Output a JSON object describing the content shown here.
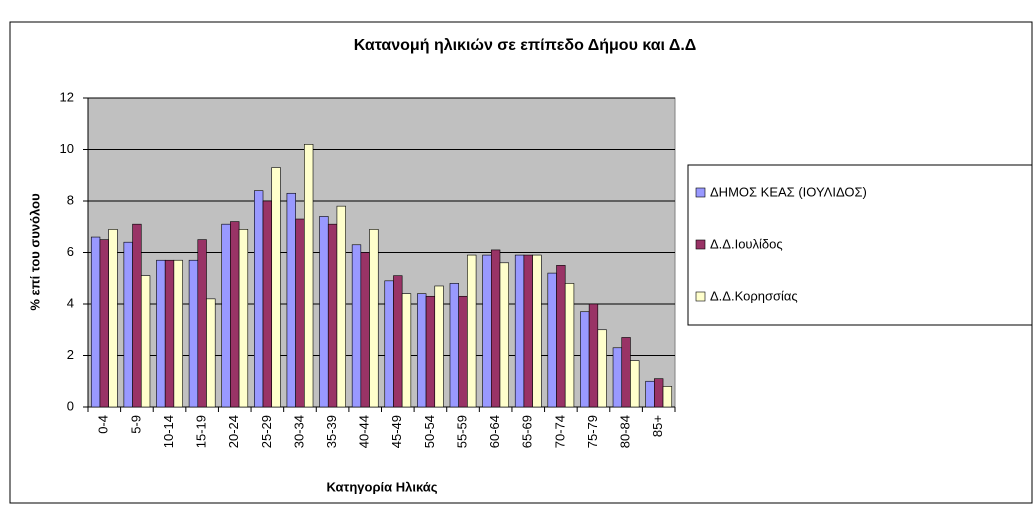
{
  "chart_data": {
    "type": "bar",
    "title": "Κατανομή ηλικιών σε επίπεδο Δήμου και Δ.Δ",
    "x_label": "Κατηγορία Ηλικάς",
    "y_label": "% επί του συνόλου",
    "categories": [
      "0-4",
      "5-9",
      "10-14",
      "15-19",
      "20-24",
      "25-29",
      "30-34",
      "35-39",
      "40-44",
      "45-49",
      "50-54",
      "55-59",
      "60-64",
      "65-69",
      "70-74",
      "75-79",
      "80-84",
      "85+"
    ],
    "series": [
      {
        "name": "ΔΗΜΟΣ ΚΕΑΣ (ΙΟΥΛΙΔΟΣ)",
        "color": "#9999ff",
        "values": [
          6.6,
          6.4,
          5.7,
          5.7,
          7.1,
          8.4,
          8.3,
          7.4,
          6.3,
          4.9,
          4.4,
          4.8,
          5.9,
          5.9,
          5.2,
          3.7,
          2.3,
          1.0
        ]
      },
      {
        "name": "Δ.Δ.Ιουλίδος",
        "color": "#993366",
        "values": [
          6.5,
          7.1,
          5.7,
          6.5,
          7.2,
          8.0,
          7.3,
          7.1,
          6.0,
          5.1,
          4.3,
          4.3,
          6.1,
          5.9,
          5.5,
          4.0,
          2.7,
          1.1
        ]
      },
      {
        "name": "Δ.Δ.Κορησσίας",
        "color": "#ffffcc",
        "values": [
          6.9,
          5.1,
          5.7,
          4.2,
          6.9,
          9.3,
          10.2,
          7.8,
          6.9,
          4.4,
          4.7,
          5.9,
          5.6,
          5.9,
          4.8,
          3.0,
          1.8,
          0.8
        ]
      }
    ],
    "ylim": [
      0,
      12
    ],
    "yticks": [
      0,
      2,
      4,
      6,
      8,
      10,
      12
    ],
    "grid": true,
    "legend": "right"
  }
}
